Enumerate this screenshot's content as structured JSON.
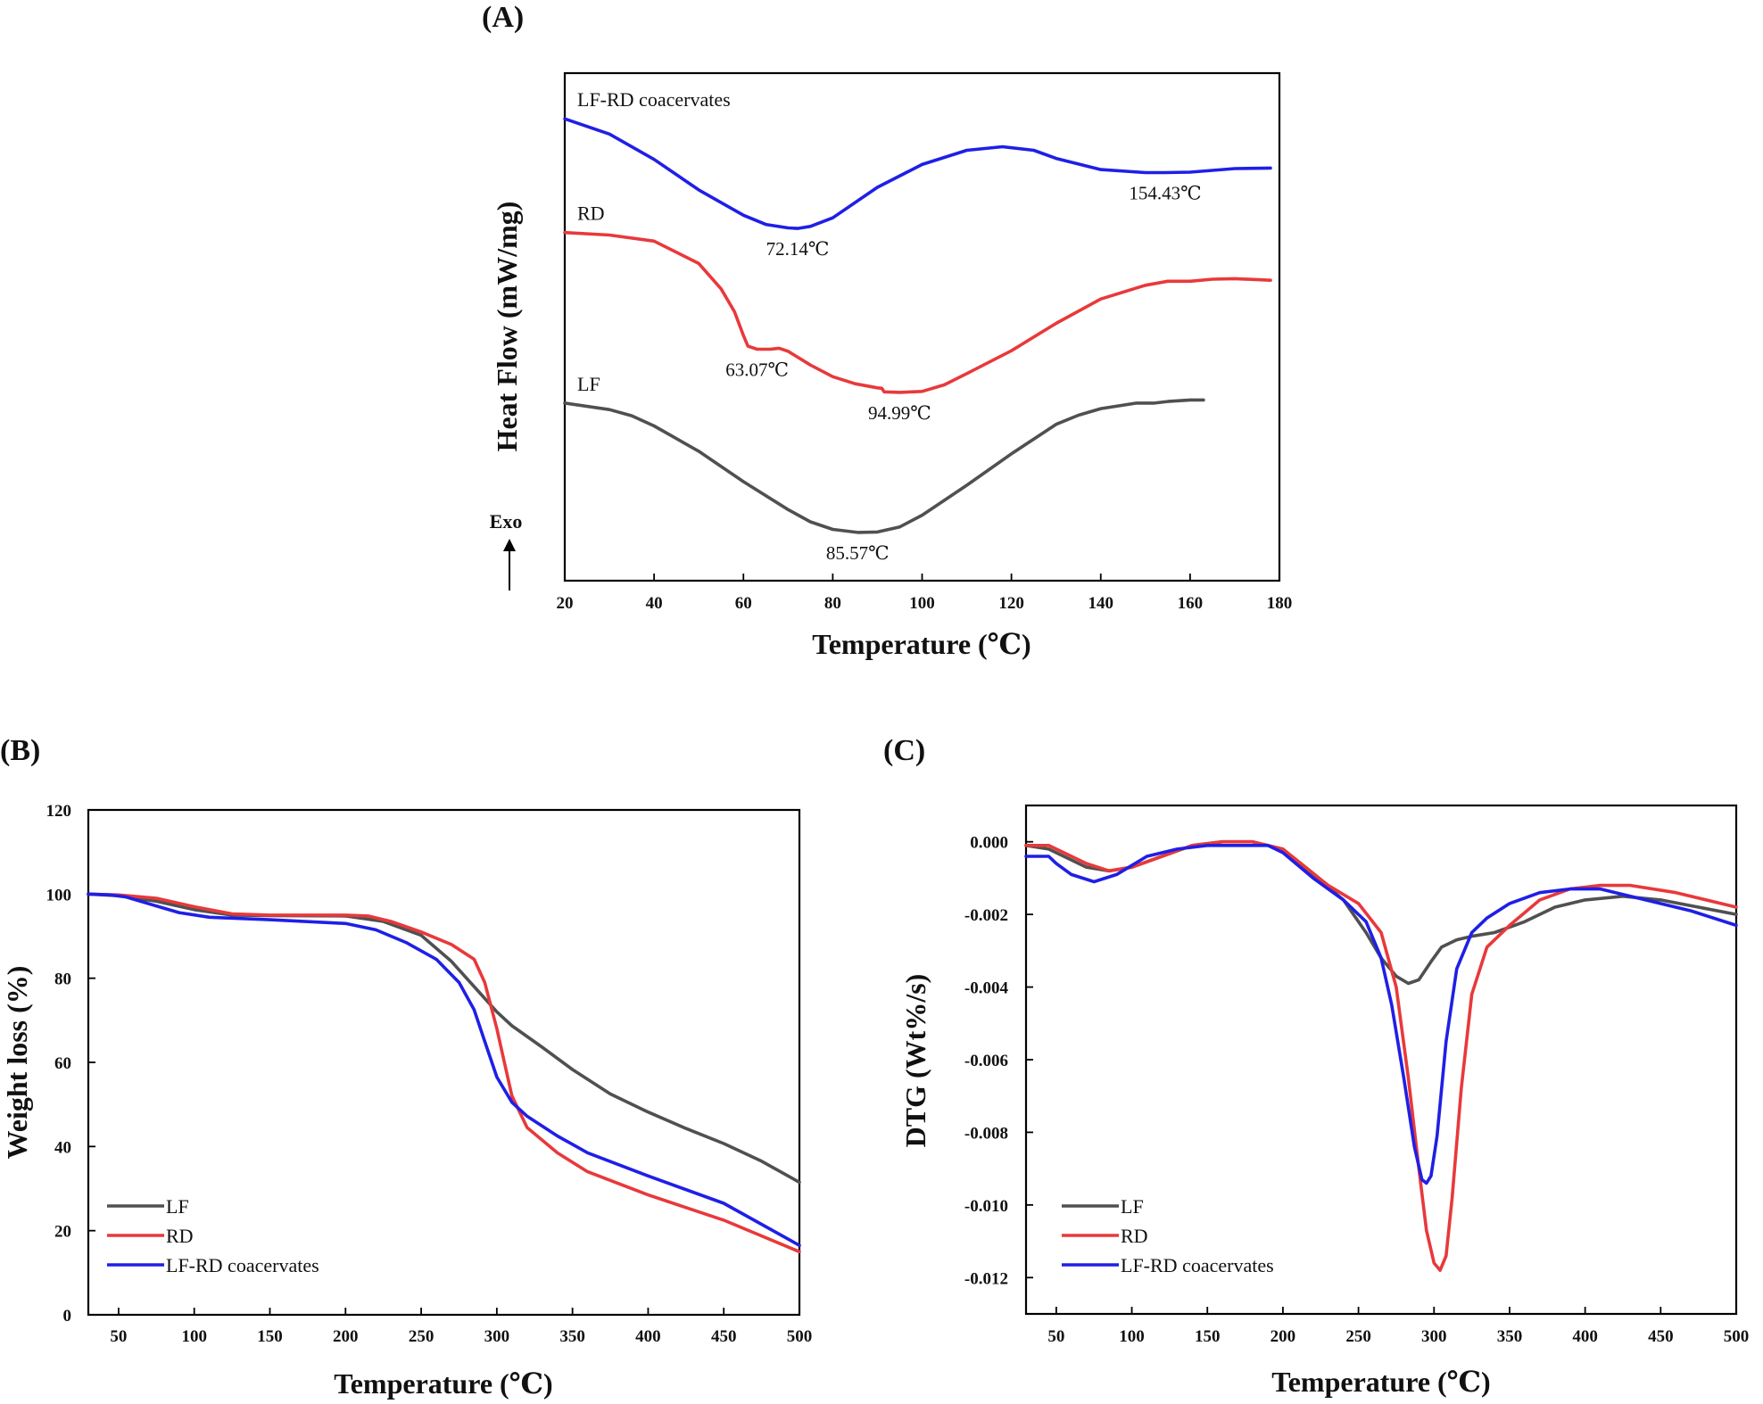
{
  "chart_data": [
    {
      "id": "A",
      "type": "line",
      "panel_label": "(A)",
      "title": "",
      "xlabel": "Temperature (℃)",
      "ylabel": "Heat Flow (mW/mg)",
      "xlim": [
        20,
        180
      ],
      "ylim": [
        0,
        100
      ],
      "xticks": [
        20,
        40,
        60,
        80,
        100,
        120,
        140,
        160,
        180
      ],
      "show_yticks": false,
      "exo_label": "Exo",
      "colors": {
        "LF": "#505050",
        "RD": "#e8393b",
        "LF-RD coacervates": "#1f1fe6"
      },
      "series": [
        {
          "name": "LF-RD coacervates",
          "label": "LF-RD coacervates",
          "color": "#1f1fe6",
          "x": [
            20,
            30,
            40,
            50,
            60,
            65,
            70,
            72.14,
            75,
            80,
            90,
            100,
            110,
            118,
            125,
            130,
            140,
            150,
            154.43,
            160,
            170,
            178
          ],
          "y": [
            91,
            88,
            83,
            77,
            72,
            70.2,
            69.5,
            69.4,
            69.8,
            71.5,
            77.5,
            82,
            84.8,
            85.5,
            84.8,
            83.2,
            81,
            80.4,
            80.4,
            80.5,
            81.2,
            81.3
          ]
        },
        {
          "name": "RD",
          "label": "RD",
          "color": "#e8393b",
          "x": [
            20,
            30,
            40,
            50,
            55,
            58,
            60,
            61,
            63.07,
            66,
            68,
            70,
            75,
            80,
            85,
            90,
            91,
            91.5,
            95,
            100,
            105,
            110,
            120,
            130,
            140,
            150,
            155,
            160,
            165,
            170,
            178
          ],
          "y": [
            68.6,
            68.1,
            66.9,
            62.5,
            57.5,
            53,
            48.3,
            46.2,
            45.6,
            45.6,
            45.8,
            45.2,
            42.5,
            40.2,
            38.8,
            38,
            37.9,
            37.2,
            37.1,
            37.3,
            38.6,
            40.8,
            45.3,
            50.7,
            55.5,
            58.2,
            59,
            59,
            59.4,
            59.5,
            59.2
          ]
        },
        {
          "name": "LF",
          "label": "LF",
          "color": "#505050",
          "x": [
            20,
            30,
            35,
            40,
            50,
            60,
            70,
            75,
            80,
            85.57,
            90,
            95,
            100,
            110,
            120,
            130,
            135,
            140,
            148,
            152,
            155,
            160,
            163
          ],
          "y": [
            35,
            33.7,
            32.5,
            30.5,
            25.5,
            19.5,
            14,
            11.6,
            10.1,
            9.5,
            9.6,
            10.6,
            12.9,
            18.8,
            25,
            30.8,
            32.6,
            33.9,
            35,
            35,
            35.3,
            35.6,
            35.6
          ]
        }
      ],
      "annotations": [
        {
          "text": "72.14℃",
          "x": 72.14,
          "y": 69.4
        },
        {
          "text": "154.43℃",
          "x": 154.43,
          "y": 80.4
        },
        {
          "text": "63.07℃",
          "x": 63.07,
          "y": 45.6
        },
        {
          "text": "94.99℃",
          "x": 94.99,
          "y": 37.1
        },
        {
          "text": "85.57℃",
          "x": 85.57,
          "y": 9.5
        }
      ]
    },
    {
      "id": "B",
      "type": "line",
      "panel_label": "(B)",
      "title": "",
      "xlabel": "Temperature (℃)",
      "ylabel": "Weight loss (%)",
      "xlim": [
        30,
        500
      ],
      "ylim": [
        0,
        120
      ],
      "xticks": [
        50,
        100,
        150,
        200,
        250,
        300,
        350,
        400,
        450,
        500
      ],
      "yticks": [
        0,
        20,
        40,
        60,
        80,
        100,
        120
      ],
      "legend": [
        "LF",
        "RD",
        "LF-RD coacervates"
      ],
      "series": [
        {
          "name": "LF",
          "color": "#505050",
          "x": [
            30,
            50,
            75,
            100,
            125,
            150,
            200,
            225,
            250,
            270,
            290,
            300,
            310,
            330,
            350,
            375,
            400,
            425,
            450,
            475,
            500
          ],
          "y": [
            100,
            99.6,
            98.3,
            96.3,
            95,
            94.9,
            94.8,
            93.5,
            90.2,
            84,
            76,
            72,
            68.7,
            63.6,
            58.3,
            52.5,
            48.2,
            44.3,
            40.7,
            36.5,
            31.5
          ]
        },
        {
          "name": "RD",
          "color": "#e8393b",
          "x": [
            30,
            50,
            75,
            100,
            125,
            150,
            200,
            215,
            230,
            250,
            270,
            285,
            292,
            300,
            305,
            310,
            320,
            340,
            360,
            400,
            450,
            500
          ],
          "y": [
            100,
            99.8,
            99,
            97,
            95.3,
            95,
            95,
            94.8,
            93.5,
            91,
            88,
            84.5,
            79,
            68,
            60,
            52,
            44.5,
            38.5,
            34,
            28.5,
            22.5,
            15
          ]
        },
        {
          "name": "LF-RD coacervates",
          "color": "#1f1fe6",
          "x": [
            30,
            45,
            55,
            70,
            90,
            110,
            150,
            200,
            220,
            240,
            260,
            275,
            285,
            292,
            300,
            310,
            320,
            340,
            360,
            400,
            450,
            500
          ],
          "y": [
            100,
            99.8,
            99.3,
            97.7,
            95.6,
            94.5,
            93.9,
            93,
            91.5,
            88.5,
            84.5,
            79,
            72.5,
            65,
            56.5,
            50.5,
            47.2,
            42.5,
            38.5,
            33,
            26.5,
            16.5
          ]
        }
      ]
    },
    {
      "id": "C",
      "type": "line",
      "panel_label": "(C)",
      "title": "",
      "xlabel": "Temperature (℃)",
      "ylabel": "DTG (Wt%/s)",
      "xlim": [
        30,
        500
      ],
      "ylim": [
        -0.013,
        0.001
      ],
      "xticks": [
        50,
        100,
        150,
        200,
        250,
        300,
        350,
        400,
        450,
        500
      ],
      "yticks": [
        0.0,
        -0.002,
        -0.004,
        -0.006,
        -0.008,
        -0.01,
        -0.012
      ],
      "ytick_labels": [
        "0.000",
        "-0.002",
        "-0.004",
        "-0.006",
        "-0.008",
        "-0.010",
        "-0.012"
      ],
      "legend": [
        "LF",
        "RD",
        "LF-RD coacervates"
      ],
      "series": [
        {
          "name": "LF",
          "color": "#505050",
          "x": [
            30,
            45,
            55,
            70,
            85,
            100,
            120,
            140,
            160,
            180,
            200,
            220,
            240,
            255,
            265,
            275,
            283,
            290,
            298,
            305,
            315,
            325,
            340,
            360,
            380,
            400,
            425,
            450,
            475,
            500
          ],
          "y": [
            -0.0001,
            -0.0002,
            -0.0004,
            -0.0007,
            -0.0008,
            -0.0007,
            -0.0004,
            -0.0001,
            0.0,
            0.0,
            -0.0002,
            -0.0009,
            -0.0016,
            -0.0025,
            -0.0032,
            -0.0037,
            -0.0039,
            -0.0038,
            -0.0033,
            -0.0029,
            -0.0027,
            -0.0026,
            -0.0025,
            -0.0022,
            -0.0018,
            -0.0016,
            -0.0015,
            -0.0016,
            -0.0018,
            -0.002
          ]
        },
        {
          "name": "RD",
          "color": "#e8393b",
          "x": [
            30,
            45,
            55,
            70,
            85,
            100,
            120,
            140,
            160,
            180,
            200,
            215,
            230,
            250,
            265,
            275,
            283,
            290,
            295,
            300,
            304,
            308,
            312,
            318,
            325,
            335,
            350,
            370,
            390,
            410,
            430,
            460,
            500
          ],
          "y": [
            -0.0001,
            -0.0001,
            -0.0003,
            -0.0006,
            -0.0008,
            -0.0007,
            -0.0004,
            -0.0001,
            0.0,
            0.0,
            -0.0002,
            -0.0007,
            -0.0012,
            -0.0017,
            -0.0025,
            -0.004,
            -0.0065,
            -0.009,
            -0.0107,
            -0.0116,
            -0.0118,
            -0.0114,
            -0.0098,
            -0.0068,
            -0.0042,
            -0.0029,
            -0.0023,
            -0.0016,
            -0.0013,
            -0.0012,
            -0.0012,
            -0.0014,
            -0.0018
          ]
        },
        {
          "name": "LF-RD coacervates",
          "color": "#1f1fe6",
          "x": [
            30,
            45,
            50,
            60,
            75,
            90,
            110,
            130,
            150,
            170,
            190,
            200,
            220,
            240,
            255,
            265,
            272,
            280,
            287,
            292,
            295,
            298,
            302,
            308,
            315,
            325,
            335,
            350,
            370,
            390,
            410,
            440,
            470,
            500
          ],
          "y": [
            -0.0004,
            -0.0004,
            -0.0006,
            -0.0009,
            -0.0011,
            -0.0009,
            -0.0004,
            -0.0002,
            -0.0001,
            -0.0001,
            -0.0001,
            -0.0003,
            -0.001,
            -0.0016,
            -0.0022,
            -0.0032,
            -0.0045,
            -0.0065,
            -0.0084,
            -0.0093,
            -0.0094,
            -0.0092,
            -0.0081,
            -0.0055,
            -0.0035,
            -0.0025,
            -0.0021,
            -0.0017,
            -0.0014,
            -0.0013,
            -0.0013,
            -0.0016,
            -0.0019,
            -0.0023
          ]
        }
      ]
    }
  ]
}
